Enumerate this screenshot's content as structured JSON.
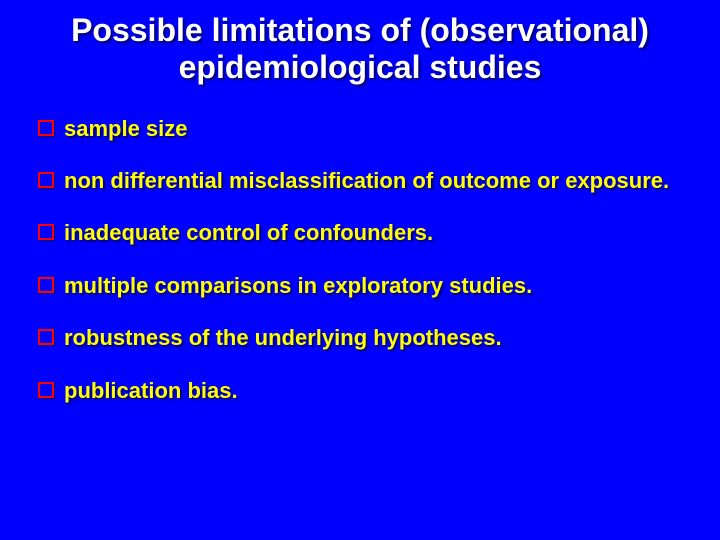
{
  "slide": {
    "title": "Possible limitations of (observational) epidemiological studies",
    "title_color": "#ffffff",
    "title_fontsize": 32,
    "background_color": "#0000ff",
    "bullet_marker_color": "#ff0000",
    "bullet_text_color": "#ffff00",
    "bullet_fontsize": 22,
    "bullets": [
      {
        "text": " sample size"
      },
      {
        "text": "non differential misclassification of outcome or exposure."
      },
      {
        "text": " inadequate control of confounders."
      },
      {
        "text": " multiple comparisons in exploratory studies."
      },
      {
        "text": "robustness of the underlying hypotheses."
      },
      {
        "text": "publication bias."
      }
    ]
  }
}
